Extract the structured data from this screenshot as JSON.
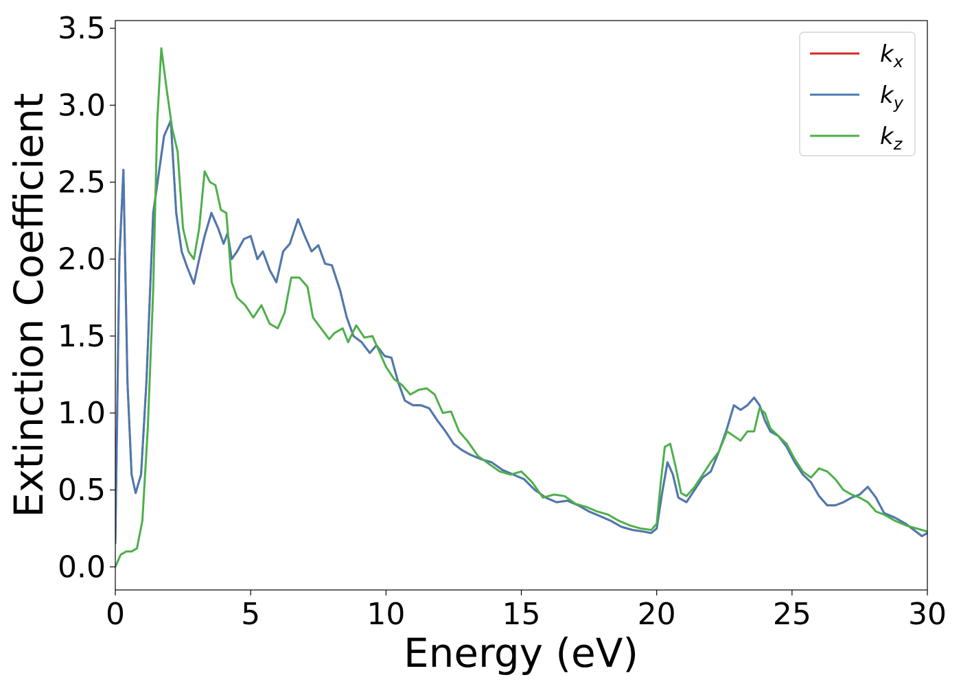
{
  "chart_data": {
    "type": "line",
    "xlabel": "Energy (eV)",
    "ylabel": "Extinction Coefficient",
    "xlim": [
      0,
      30
    ],
    "ylim": [
      -0.15,
      3.55
    ],
    "x_ticks": [
      "0",
      "5",
      "10",
      "15",
      "20",
      "25",
      "30"
    ],
    "y_ticks": [
      "0.0",
      "0.5",
      "1.0",
      "1.5",
      "2.0",
      "2.5",
      "3.0",
      "3.5"
    ],
    "x_tick_values": [
      0,
      5,
      10,
      15,
      20,
      25,
      30
    ],
    "y_tick_values": [
      0.0,
      0.5,
      1.0,
      1.5,
      2.0,
      2.5,
      3.0,
      3.5
    ],
    "grid": false,
    "legend_position": "top-right",
    "series": [
      {
        "name": "kx",
        "label_base": "k",
        "label_sub": "x",
        "color": "#d62728",
        "x": [
          0,
          0.15,
          0.3,
          0.45,
          0.6,
          0.75,
          0.95,
          1.15,
          1.4,
          1.6,
          1.8,
          2.05,
          2.25,
          2.45,
          2.65,
          2.9,
          3.1,
          3.3,
          3.55,
          3.8,
          4.0,
          4.15,
          4.3,
          4.5,
          4.75,
          5.0,
          5.25,
          5.45,
          5.7,
          5.95,
          6.2,
          6.45,
          6.75,
          7.0,
          7.25,
          7.5,
          7.75,
          8.0,
          8.3,
          8.55,
          8.8,
          9.1,
          9.4,
          9.65,
          9.95,
          10.2,
          10.45,
          10.7,
          11.0,
          11.3,
          11.6,
          11.9,
          12.2,
          12.5,
          12.8,
          13.1,
          13.5,
          13.9,
          14.3,
          14.7,
          15.1,
          15.5,
          15.9,
          16.3,
          16.7,
          17.1,
          17.5,
          17.9,
          18.3,
          18.7,
          19.1,
          19.5,
          19.8,
          20.0,
          20.2,
          20.4,
          20.6,
          20.8,
          21.1,
          21.4,
          21.7,
          22.0,
          22.3,
          22.6,
          22.85,
          23.1,
          23.35,
          23.6,
          23.8,
          24.0,
          24.2,
          24.5,
          24.8,
          25.1,
          25.4,
          25.7,
          26.0,
          26.3,
          26.6,
          26.9,
          27.2,
          27.5,
          27.8,
          28.1,
          28.4,
          28.8,
          29.2,
          29.5,
          29.8,
          30.0
        ],
        "values": [
          0.15,
          2.0,
          2.58,
          1.2,
          0.6,
          0.48,
          0.6,
          1.2,
          2.3,
          2.55,
          2.8,
          2.9,
          2.3,
          2.05,
          1.95,
          1.84,
          2.0,
          2.15,
          2.3,
          2.2,
          2.1,
          2.17,
          2.0,
          2.05,
          2.13,
          2.15,
          2.0,
          2.05,
          1.93,
          1.85,
          2.05,
          2.1,
          2.26,
          2.15,
          2.05,
          2.09,
          1.97,
          1.96,
          1.8,
          1.62,
          1.5,
          1.46,
          1.39,
          1.44,
          1.37,
          1.36,
          1.2,
          1.08,
          1.05,
          1.05,
          1.03,
          0.95,
          0.88,
          0.8,
          0.76,
          0.73,
          0.7,
          0.68,
          0.63,
          0.6,
          0.57,
          0.5,
          0.45,
          0.42,
          0.43,
          0.4,
          0.36,
          0.33,
          0.3,
          0.26,
          0.24,
          0.23,
          0.22,
          0.25,
          0.48,
          0.68,
          0.6,
          0.45,
          0.42,
          0.5,
          0.58,
          0.62,
          0.75,
          0.9,
          1.05,
          1.02,
          1.05,
          1.1,
          1.05,
          0.95,
          0.88,
          0.85,
          0.78,
          0.68,
          0.6,
          0.55,
          0.46,
          0.4,
          0.4,
          0.42,
          0.45,
          0.47,
          0.52,
          0.45,
          0.35,
          0.32,
          0.28,
          0.24,
          0.2,
          0.22
        ]
      },
      {
        "name": "ky",
        "label_base": "k",
        "label_sub": "y",
        "color": "#4a7ab0",
        "x": [
          0,
          0.15,
          0.3,
          0.45,
          0.6,
          0.75,
          0.95,
          1.15,
          1.4,
          1.6,
          1.8,
          2.05,
          2.25,
          2.45,
          2.65,
          2.9,
          3.1,
          3.3,
          3.55,
          3.8,
          4.0,
          4.15,
          4.3,
          4.5,
          4.75,
          5.0,
          5.25,
          5.45,
          5.7,
          5.95,
          6.2,
          6.45,
          6.75,
          7.0,
          7.25,
          7.5,
          7.75,
          8.0,
          8.3,
          8.55,
          8.8,
          9.1,
          9.4,
          9.65,
          9.95,
          10.2,
          10.45,
          10.7,
          11.0,
          11.3,
          11.6,
          11.9,
          12.2,
          12.5,
          12.8,
          13.1,
          13.5,
          13.9,
          14.3,
          14.7,
          15.1,
          15.5,
          15.9,
          16.3,
          16.7,
          17.1,
          17.5,
          17.9,
          18.3,
          18.7,
          19.1,
          19.5,
          19.8,
          20.0,
          20.2,
          20.4,
          20.6,
          20.8,
          21.1,
          21.4,
          21.7,
          22.0,
          22.3,
          22.6,
          22.85,
          23.1,
          23.35,
          23.6,
          23.8,
          24.0,
          24.2,
          24.5,
          24.8,
          25.1,
          25.4,
          25.7,
          26.0,
          26.3,
          26.6,
          26.9,
          27.2,
          27.5,
          27.8,
          28.1,
          28.4,
          28.8,
          29.2,
          29.5,
          29.8,
          30.0
        ],
        "values": [
          0.15,
          2.0,
          2.58,
          1.2,
          0.6,
          0.48,
          0.6,
          1.2,
          2.3,
          2.55,
          2.8,
          2.9,
          2.3,
          2.05,
          1.95,
          1.84,
          2.0,
          2.15,
          2.3,
          2.2,
          2.1,
          2.17,
          2.0,
          2.05,
          2.13,
          2.15,
          2.0,
          2.05,
          1.93,
          1.85,
          2.05,
          2.1,
          2.26,
          2.15,
          2.05,
          2.09,
          1.97,
          1.96,
          1.8,
          1.62,
          1.5,
          1.46,
          1.39,
          1.44,
          1.37,
          1.36,
          1.2,
          1.08,
          1.05,
          1.05,
          1.03,
          0.95,
          0.88,
          0.8,
          0.76,
          0.73,
          0.7,
          0.68,
          0.63,
          0.6,
          0.57,
          0.5,
          0.45,
          0.42,
          0.43,
          0.4,
          0.36,
          0.33,
          0.3,
          0.26,
          0.24,
          0.23,
          0.22,
          0.25,
          0.48,
          0.68,
          0.6,
          0.45,
          0.42,
          0.5,
          0.58,
          0.62,
          0.75,
          0.9,
          1.05,
          1.02,
          1.05,
          1.1,
          1.05,
          0.95,
          0.88,
          0.85,
          0.78,
          0.68,
          0.6,
          0.55,
          0.46,
          0.4,
          0.4,
          0.42,
          0.45,
          0.47,
          0.52,
          0.45,
          0.35,
          0.32,
          0.28,
          0.24,
          0.2,
          0.22
        ]
      },
      {
        "name": "kz",
        "label_base": "k",
        "label_sub": "z",
        "color": "#4daf4a",
        "x": [
          0,
          0.2,
          0.4,
          0.6,
          0.8,
          1.0,
          1.2,
          1.4,
          1.55,
          1.7,
          1.9,
          2.1,
          2.3,
          2.5,
          2.7,
          2.9,
          3.1,
          3.3,
          3.5,
          3.7,
          3.9,
          4.1,
          4.3,
          4.5,
          4.8,
          5.1,
          5.4,
          5.7,
          6.0,
          6.25,
          6.5,
          6.8,
          7.1,
          7.3,
          7.6,
          7.9,
          8.1,
          8.4,
          8.6,
          8.9,
          9.2,
          9.5,
          9.8,
          10.0,
          10.3,
          10.6,
          10.9,
          11.2,
          11.5,
          11.8,
          12.1,
          12.4,
          12.7,
          13.0,
          13.4,
          13.8,
          14.2,
          14.6,
          15.0,
          15.4,
          15.8,
          16.2,
          16.6,
          17.0,
          17.4,
          17.8,
          18.2,
          18.6,
          19.0,
          19.4,
          19.8,
          20.0,
          20.15,
          20.3,
          20.5,
          20.7,
          20.9,
          21.1,
          21.4,
          21.7,
          22.0,
          22.3,
          22.6,
          22.85,
          23.1,
          23.35,
          23.6,
          23.8,
          24.0,
          24.2,
          24.5,
          24.8,
          25.1,
          25.4,
          25.7,
          26.0,
          26.3,
          26.6,
          26.9,
          27.2,
          27.5,
          27.8,
          28.1,
          28.4,
          28.8,
          29.2,
          29.6,
          30.0
        ],
        "values": [
          0.0,
          0.08,
          0.1,
          0.1,
          0.12,
          0.3,
          0.9,
          1.8,
          2.9,
          3.37,
          3.1,
          2.85,
          2.7,
          2.2,
          2.05,
          2.0,
          2.2,
          2.57,
          2.5,
          2.48,
          2.32,
          2.3,
          1.85,
          1.75,
          1.7,
          1.62,
          1.7,
          1.58,
          1.55,
          1.65,
          1.88,
          1.88,
          1.82,
          1.62,
          1.55,
          1.48,
          1.52,
          1.55,
          1.46,
          1.57,
          1.49,
          1.5,
          1.38,
          1.3,
          1.22,
          1.18,
          1.12,
          1.15,
          1.16,
          1.12,
          1.0,
          1.01,
          0.88,
          0.82,
          0.72,
          0.67,
          0.62,
          0.6,
          0.62,
          0.55,
          0.45,
          0.47,
          0.46,
          0.41,
          0.39,
          0.36,
          0.34,
          0.3,
          0.27,
          0.25,
          0.24,
          0.28,
          0.55,
          0.78,
          0.8,
          0.65,
          0.48,
          0.46,
          0.52,
          0.6,
          0.68,
          0.75,
          0.88,
          0.85,
          0.82,
          0.88,
          0.88,
          1.03,
          1.0,
          0.9,
          0.85,
          0.8,
          0.7,
          0.62,
          0.58,
          0.64,
          0.62,
          0.57,
          0.5,
          0.47,
          0.45,
          0.42,
          0.36,
          0.34,
          0.3,
          0.27,
          0.25,
          0.23
        ]
      }
    ]
  }
}
